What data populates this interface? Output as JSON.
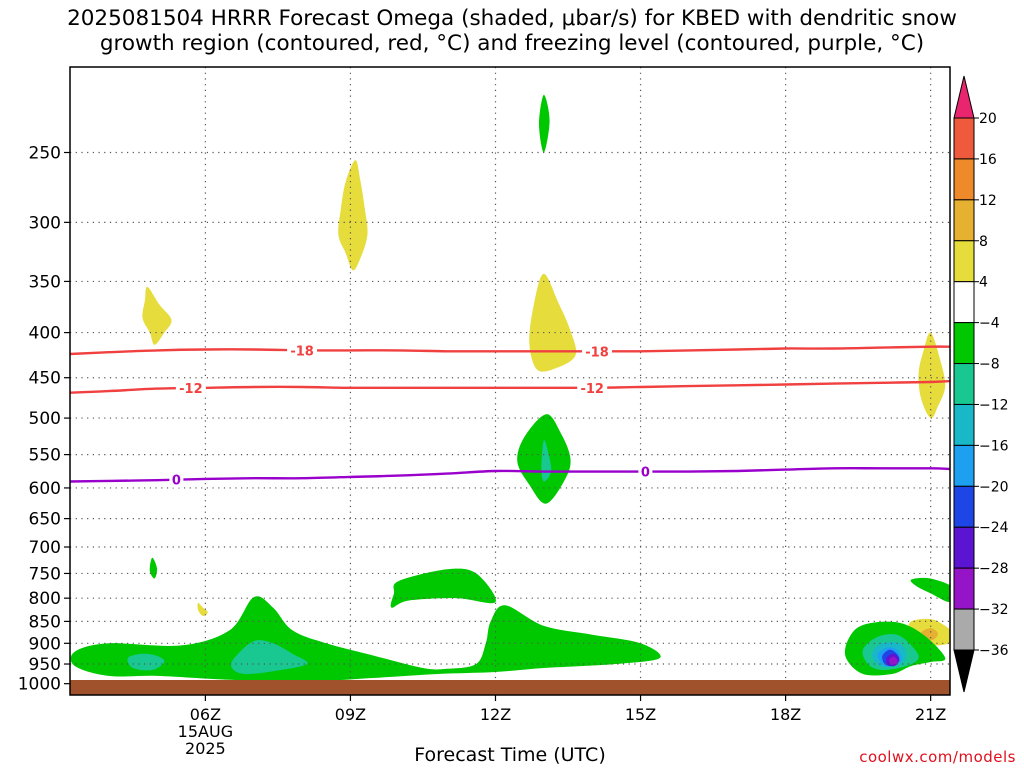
{
  "title": "2025081504 HRRR Forecast Omega (shaded, μbar/s) for KBED with dendritic snow\ngrowth region (contoured, red, °C) and freezing level (contoured, purple, °C)",
  "xlabel": "Forecast Time (UTC)",
  "credit": "coolwx.com/models",
  "colors": {
    "dgz_line": "#f04040",
    "freezing_line": "#9900cc",
    "ground": "#a0522d",
    "grid": "#555555"
  },
  "chart_data": {
    "type": "heatmap",
    "title": "2025081504 HRRR Forecast Omega (shaded, μbar/s) for KBED with dendritic snow growth region (contoured, red, °C) and freezing level (contoured, purple, °C)",
    "xlabel": "Forecast Time (UTC)",
    "ylabel": "",
    "x_unit": "hour UTC, 15 Aug 2025",
    "xlim": [
      3.2,
      21.4
    ],
    "x_ticks": [
      {
        "x": 6,
        "label": "06Z",
        "sublabels": [
          "15AUG",
          "2025"
        ]
      },
      {
        "x": 9,
        "label": "09Z"
      },
      {
        "x": 12,
        "label": "12Z"
      },
      {
        "x": 15,
        "label": "15Z"
      },
      {
        "x": 18,
        "label": "18Z"
      },
      {
        "x": 21,
        "label": "21Z"
      }
    ],
    "y_unit": "pressure (mb), log scale, inverted",
    "ylim": [
      1030,
      200
    ],
    "y_ticks": [
      250,
      300,
      350,
      400,
      450,
      500,
      550,
      600,
      650,
      700,
      750,
      800,
      850,
      900,
      950,
      1000
    ],
    "grid": true,
    "colorbar": {
      "levels": [
        20,
        16,
        12,
        8,
        4,
        -4,
        -8,
        -12,
        -16,
        -20,
        -24,
        -28,
        -32,
        -36
      ],
      "colors": [
        "#e8256e",
        "#f05a3c",
        "#ee8a2a",
        "#e6b030",
        "#e6dc3c",
        "#ffffff",
        "#00c800",
        "#18c890",
        "#18b8c8",
        "#1ea0f0",
        "#1e46e6",
        "#5a14d2",
        "#9614c8",
        "#aaaaaa",
        "#000000"
      ]
    },
    "series": [
      {
        "name": "-18",
        "kind": "dendritic snow growth isotherm",
        "points": [
          [
            3.2,
            423
          ],
          [
            4,
            421
          ],
          [
            5,
            419
          ],
          [
            6,
            418
          ],
          [
            7,
            418
          ],
          [
            8,
            419
          ],
          [
            9,
            419
          ],
          [
            10,
            419
          ],
          [
            11,
            420
          ],
          [
            12,
            420
          ],
          [
            13,
            420
          ],
          [
            14,
            420
          ],
          [
            15,
            420
          ],
          [
            16,
            419
          ],
          [
            17,
            418
          ],
          [
            18,
            417
          ],
          [
            19,
            417
          ],
          [
            20,
            416
          ],
          [
            21,
            415
          ],
          [
            21.4,
            415
          ]
        ],
        "label_at": [
          8,
          14.1
        ]
      },
      {
        "name": "-12",
        "kind": "dendritic snow growth isotherm",
        "points": [
          [
            3.2,
            468
          ],
          [
            4,
            466
          ],
          [
            5,
            463
          ],
          [
            6,
            462
          ],
          [
            7,
            461
          ],
          [
            8,
            461
          ],
          [
            9,
            462
          ],
          [
            10,
            462
          ],
          [
            11,
            462
          ],
          [
            12,
            462
          ],
          [
            13,
            462
          ],
          [
            14,
            462
          ],
          [
            15,
            461
          ],
          [
            16,
            460
          ],
          [
            17,
            459
          ],
          [
            18,
            458
          ],
          [
            19,
            457
          ],
          [
            20,
            456
          ],
          [
            21,
            455
          ],
          [
            21.4,
            454
          ]
        ],
        "label_at": [
          5.7,
          14
        ]
      },
      {
        "name": "0",
        "kind": "freezing level",
        "points": [
          [
            3.2,
            590
          ],
          [
            4,
            589
          ],
          [
            5,
            588
          ],
          [
            6,
            586
          ],
          [
            7,
            585
          ],
          [
            8,
            585
          ],
          [
            9,
            583
          ],
          [
            10,
            581
          ],
          [
            11,
            578
          ],
          [
            12,
            574
          ],
          [
            13,
            575
          ],
          [
            14,
            575
          ],
          [
            15,
            575
          ],
          [
            16,
            575
          ],
          [
            17,
            574
          ],
          [
            18,
            572
          ],
          [
            19,
            570
          ],
          [
            20,
            570
          ],
          [
            21,
            570
          ],
          [
            21.4,
            571
          ]
        ],
        "label_at": [
          5.4,
          15.1
        ]
      }
    ],
    "shaded_regions": [
      {
        "level": 4,
        "color": "#e6dc3c",
        "points": [
          [
            4.8,
            355
          ],
          [
            5.05,
            372
          ],
          [
            5.3,
            387
          ],
          [
            5.15,
            400
          ],
          [
            4.95,
            413
          ],
          [
            4.85,
            400
          ],
          [
            4.7,
            385
          ],
          [
            4.75,
            368
          ]
        ]
      },
      {
        "level": 4,
        "color": "#e6dc3c",
        "points": [
          [
            9.1,
            255
          ],
          [
            9.2,
            268
          ],
          [
            9.3,
            290
          ],
          [
            9.35,
            310
          ],
          [
            9.2,
            330
          ],
          [
            9.05,
            340
          ],
          [
            8.9,
            325
          ],
          [
            8.75,
            310
          ],
          [
            8.8,
            290
          ],
          [
            8.9,
            270
          ]
        ]
      },
      {
        "level": 4,
        "color": "#e6dc3c",
        "points": [
          [
            13.0,
            343
          ],
          [
            13.3,
            370
          ],
          [
            13.55,
            398
          ],
          [
            13.65,
            425
          ],
          [
            13.2,
            440
          ],
          [
            12.85,
            440
          ],
          [
            12.7,
            410
          ],
          [
            12.8,
            370
          ]
        ]
      },
      {
        "level": 4,
        "color": "#e6dc3c",
        "points": [
          [
            21.0,
            400
          ],
          [
            21.2,
            430
          ],
          [
            21.3,
            460
          ],
          [
            21.15,
            485
          ],
          [
            21.0,
            500
          ],
          [
            20.8,
            475
          ],
          [
            20.75,
            445
          ],
          [
            20.85,
            420
          ]
        ]
      },
      {
        "level": 4,
        "color": "#e6dc3c",
        "points": [
          [
            5.85,
            810
          ],
          [
            5.95,
            820
          ],
          [
            6.05,
            830
          ],
          [
            5.95,
            838
          ],
          [
            5.85,
            825
          ]
        ]
      },
      {
        "level": 4,
        "color": "#e6dc3c",
        "points": [
          [
            20.6,
            850
          ],
          [
            21.0,
            845
          ],
          [
            21.3,
            860
          ],
          [
            21.6,
            890
          ],
          [
            21.4,
            900
          ],
          [
            21.1,
            905
          ],
          [
            20.8,
            895
          ],
          [
            20.55,
            875
          ]
        ]
      },
      {
        "level": 8,
        "color": "#e6b030",
        "points": [
          [
            20.8,
            875
          ],
          [
            21.0,
            865
          ],
          [
            21.15,
            877
          ],
          [
            21.05,
            892
          ],
          [
            20.85,
            890
          ]
        ]
      },
      {
        "level": -4,
        "color": "#00c800",
        "points": [
          [
            13.0,
            215
          ],
          [
            13.12,
            230
          ],
          [
            13.0,
            250
          ],
          [
            12.9,
            232
          ]
        ]
      },
      {
        "level": -4,
        "color": "#00c800",
        "points": [
          [
            13.05,
            495
          ],
          [
            13.35,
            520
          ],
          [
            13.55,
            555
          ],
          [
            13.45,
            585
          ],
          [
            13.05,
            625
          ],
          [
            12.7,
            595
          ],
          [
            12.45,
            560
          ],
          [
            12.6,
            525
          ]
        ]
      },
      {
        "level": -8,
        "color": "#18c890",
        "points": [
          [
            13.0,
            530
          ],
          [
            13.1,
            550
          ],
          [
            13.15,
            575
          ],
          [
            13.0,
            590
          ],
          [
            12.95,
            570
          ]
        ]
      },
      {
        "level": -4,
        "color": "#00c800",
        "points": [
          [
            4.9,
            720
          ],
          [
            5.0,
            740
          ],
          [
            4.95,
            760
          ],
          [
            4.85,
            745
          ]
        ]
      },
      {
        "level": -4,
        "color": "#00c800",
        "points": [
          [
            3.3,
            920
          ],
          [
            4.0,
            900
          ],
          [
            5.5,
            905
          ],
          [
            6.5,
            870
          ],
          [
            7.0,
            798
          ],
          [
            7.4,
            820
          ],
          [
            7.8,
            870
          ],
          [
            8.5,
            900
          ],
          [
            9.5,
            930
          ],
          [
            10.5,
            960
          ],
          [
            11.0,
            962
          ],
          [
            11.6,
            950
          ],
          [
            11.8,
            900
          ],
          [
            11.9,
            850
          ],
          [
            12.2,
            815
          ],
          [
            13.0,
            860
          ],
          [
            14.0,
            880
          ],
          [
            15.0,
            900
          ],
          [
            15.4,
            935
          ],
          [
            14.5,
            950
          ],
          [
            13.0,
            960
          ],
          [
            12.0,
            970
          ],
          [
            10.8,
            975
          ],
          [
            9.5,
            985
          ],
          [
            8.0,
            995
          ],
          [
            6.5,
            990
          ],
          [
            5.0,
            980
          ],
          [
            4.0,
            980
          ],
          [
            3.3,
            955
          ]
        ]
      },
      {
        "level": -4,
        "color": "#00c800",
        "points": [
          [
            10.0,
            765
          ],
          [
            11.0,
            742
          ],
          [
            11.6,
            750
          ],
          [
            12.0,
            808
          ],
          [
            11.2,
            800
          ],
          [
            10.2,
            805
          ],
          [
            9.85,
            820
          ],
          [
            9.9,
            790
          ]
        ]
      },
      {
        "level": -8,
        "color": "#18c890",
        "points": [
          [
            4.4,
            935
          ],
          [
            4.7,
            925
          ],
          [
            5.0,
            930
          ],
          [
            5.15,
            945
          ],
          [
            4.9,
            965
          ],
          [
            4.5,
            960
          ]
        ]
      },
      {
        "level": -8,
        "color": "#18c890",
        "points": [
          [
            6.6,
            935
          ],
          [
            7.0,
            895
          ],
          [
            7.4,
            900
          ],
          [
            7.8,
            925
          ],
          [
            8.1,
            950
          ],
          [
            7.4,
            968
          ],
          [
            6.8,
            975
          ],
          [
            6.55,
            960
          ]
        ]
      },
      {
        "level": -4,
        "color": "#00c800",
        "points": [
          [
            20.6,
            762
          ],
          [
            21.0,
            760
          ],
          [
            21.5,
            780
          ],
          [
            21.4,
            808
          ],
          [
            21.0,
            790
          ],
          [
            20.7,
            775
          ]
        ]
      },
      {
        "level": -4,
        "color": "#00c800",
        "points": [
          [
            19.3,
            890
          ],
          [
            19.6,
            858
          ],
          [
            20.3,
            852
          ],
          [
            20.85,
            880
          ],
          [
            21.3,
            935
          ],
          [
            21.0,
            945
          ],
          [
            20.6,
            955
          ],
          [
            20.2,
            975
          ],
          [
            19.6,
            975
          ],
          [
            19.25,
            935
          ]
        ]
      },
      {
        "level": -8,
        "color": "#18c890",
        "points": [
          [
            19.6,
            915
          ],
          [
            19.9,
            885
          ],
          [
            20.3,
            880
          ],
          [
            20.6,
            905
          ],
          [
            20.75,
            935
          ],
          [
            20.5,
            955
          ],
          [
            20.0,
            965
          ],
          [
            19.7,
            950
          ]
        ]
      },
      {
        "level": -12,
        "color": "#18b8c8",
        "points": [
          [
            19.8,
            920
          ],
          [
            20.0,
            900
          ],
          [
            20.35,
            900
          ],
          [
            20.5,
            925
          ],
          [
            20.4,
            950
          ],
          [
            20.05,
            958
          ],
          [
            19.85,
            945
          ]
        ]
      },
      {
        "level": -16,
        "color": "#1ea0f0",
        "points": [
          [
            19.9,
            925
          ],
          [
            20.1,
            910
          ],
          [
            20.3,
            915
          ],
          [
            20.4,
            935
          ],
          [
            20.3,
            952
          ],
          [
            20.05,
            955
          ],
          [
            19.95,
            942
          ]
        ]
      },
      {
        "level": -20,
        "color": "#1e46e6",
        "points": [
          [
            20.0,
            930
          ],
          [
            20.15,
            915
          ],
          [
            20.3,
            925
          ],
          [
            20.35,
            942
          ],
          [
            20.2,
            955
          ],
          [
            20.05,
            950
          ]
        ]
      },
      {
        "level": -24,
        "color": "#5a14d2",
        "points": [
          [
            20.1,
            932
          ],
          [
            20.25,
            925
          ],
          [
            20.35,
            940
          ],
          [
            20.25,
            955
          ],
          [
            20.1,
            950
          ]
        ]
      },
      {
        "level": -28,
        "color": "#9614c8",
        "points": [
          [
            20.15,
            937
          ],
          [
            20.25,
            932
          ],
          [
            20.32,
            945
          ],
          [
            20.22,
            952
          ],
          [
            20.15,
            947
          ]
        ]
      }
    ]
  }
}
